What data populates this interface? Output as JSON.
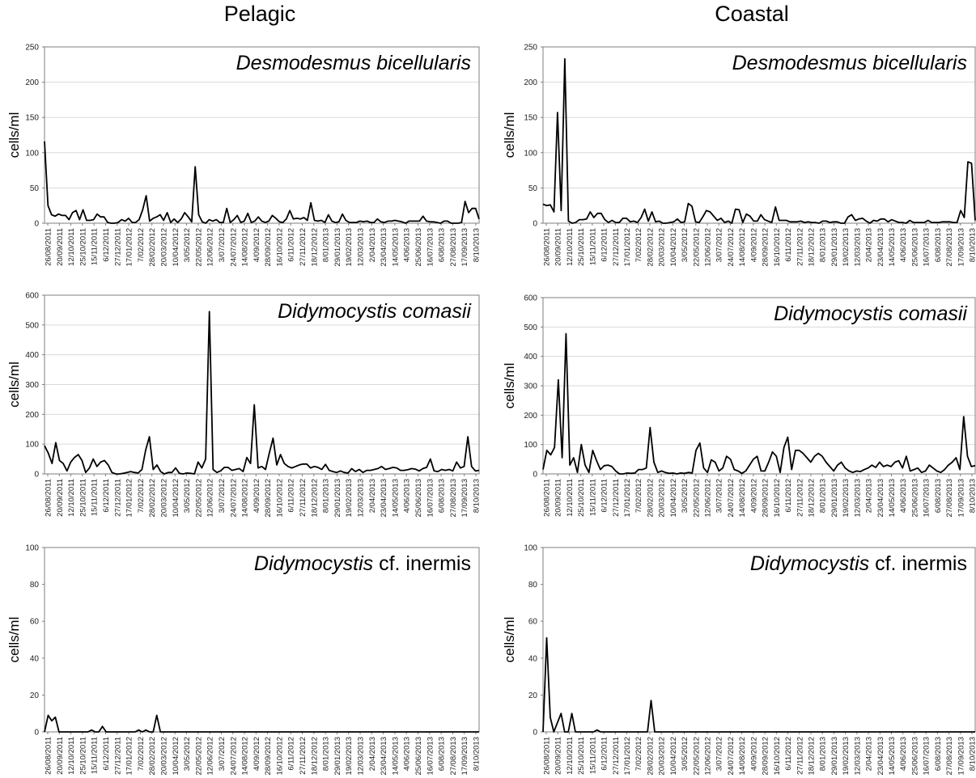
{
  "columns": [
    "Pelagic",
    "Coastal"
  ],
  "chart_data": [
    {
      "type": "line",
      "column": "Pelagic",
      "species": {
        "italic": "Desmodesmus bicellularis",
        "plain": ""
      },
      "ylabel": "cells/ml",
      "ylim": [
        0,
        250
      ],
      "yticks": [
        0,
        50,
        100,
        150,
        200,
        250
      ],
      "grid": true,
      "values": [
        116,
        25,
        12,
        10,
        13,
        11,
        11,
        5,
        15,
        18,
        5,
        19,
        4,
        4,
        5,
        13,
        9,
        9,
        1,
        0,
        0,
        1,
        5,
        3,
        7,
        1,
        1,
        5,
        19,
        39,
        3,
        7,
        9,
        12,
        4,
        15,
        1,
        6,
        1,
        6,
        15,
        9,
        2,
        80,
        12,
        2,
        0,
        5,
        3,
        5,
        1,
        1,
        21,
        1,
        5,
        11,
        1,
        3,
        14,
        1,
        3,
        9,
        3,
        1,
        3,
        11,
        7,
        2,
        1,
        6,
        18,
        6,
        7,
        6,
        8,
        4,
        29,
        4,
        3,
        4,
        1,
        12,
        3,
        1,
        2,
        13,
        4,
        1,
        1,
        1,
        3,
        2,
        3,
        1,
        1,
        6,
        2,
        1,
        3,
        3,
        4,
        3,
        2,
        0,
        3,
        3,
        3,
        3,
        10,
        3,
        2,
        2,
        1,
        0,
        3,
        3,
        0,
        0,
        0,
        1,
        31,
        15,
        21,
        21,
        6
      ]
    },
    {
      "type": "line",
      "column": "Coastal",
      "species": {
        "italic": "Desmodesmus bicellularis",
        "plain": ""
      },
      "ylabel": "cells/ml",
      "ylim": [
        0,
        250
      ],
      "yticks": [
        0,
        50,
        100,
        150,
        200,
        250
      ],
      "grid": true,
      "values": [
        27,
        25,
        26,
        16,
        157,
        18,
        233,
        3,
        0,
        1,
        5,
        5,
        6,
        16,
        8,
        14,
        14,
        5,
        1,
        4,
        1,
        1,
        7,
        7,
        2,
        3,
        1,
        8,
        20,
        3,
        16,
        2,
        3,
        0,
        0,
        1,
        2,
        6,
        1,
        2,
        28,
        24,
        2,
        1,
        9,
        18,
        16,
        10,
        4,
        7,
        1,
        3,
        0,
        20,
        19,
        1,
        13,
        10,
        3,
        3,
        12,
        5,
        3,
        1,
        23,
        4,
        4,
        4,
        2,
        2,
        2,
        3,
        1,
        2,
        1,
        1,
        0,
        3,
        3,
        1,
        2,
        2,
        0,
        0,
        9,
        12,
        4,
        6,
        7,
        3,
        0,
        4,
        3,
        6,
        6,
        2,
        5,
        3,
        1,
        1,
        0,
        4,
        1,
        1,
        1,
        1,
        4,
        1,
        1,
        1,
        2,
        2,
        2,
        1,
        1,
        18,
        8,
        87,
        85,
        4
      ]
    },
    {
      "type": "line",
      "column": "Pelagic",
      "species": {
        "italic": "Didymocystis comasii",
        "plain": ""
      },
      "ylabel": "cells/ml",
      "ylim": [
        0,
        600
      ],
      "yticks": [
        0,
        100,
        200,
        300,
        400,
        500,
        600
      ],
      "grid": true,
      "values": [
        95,
        70,
        35,
        105,
        45,
        35,
        10,
        40,
        55,
        65,
        45,
        5,
        20,
        50,
        25,
        40,
        45,
        30,
        5,
        0,
        0,
        2,
        5,
        8,
        5,
        3,
        15,
        80,
        125,
        15,
        30,
        8,
        0,
        5,
        5,
        20,
        2,
        0,
        3,
        2,
        0,
        40,
        20,
        50,
        545,
        15,
        5,
        10,
        22,
        22,
        12,
        15,
        18,
        8,
        55,
        35,
        232,
        20,
        25,
        15,
        70,
        120,
        30,
        65,
        35,
        25,
        20,
        25,
        30,
        33,
        33,
        20,
        25,
        22,
        15,
        32,
        12,
        8,
        5,
        10,
        5,
        3,
        18,
        8,
        15,
        5,
        12,
        12,
        15,
        18,
        25,
        15,
        18,
        22,
        20,
        12,
        12,
        14,
        18,
        16,
        10,
        18,
        22,
        50,
        10,
        8,
        15,
        12,
        15,
        10,
        40,
        20,
        25,
        125,
        25,
        10,
        12
      ]
    },
    {
      "type": "line",
      "column": "Coastal",
      "species": {
        "italic": "Didymocystis comasii",
        "plain": ""
      },
      "ylabel": "cells/ml",
      "ylim": [
        0,
        600
      ],
      "yticks": [
        0,
        100,
        200,
        300,
        400,
        500,
        600
      ],
      "grid": true,
      "values": [
        15,
        80,
        65,
        90,
        320,
        55,
        477,
        30,
        55,
        5,
        100,
        30,
        5,
        80,
        45,
        15,
        28,
        30,
        25,
        10,
        0,
        0,
        3,
        2,
        3,
        15,
        15,
        20,
        158,
        40,
        5,
        10,
        5,
        2,
        3,
        0,
        3,
        2,
        5,
        3,
        80,
        105,
        20,
        5,
        48,
        40,
        10,
        20,
        60,
        50,
        15,
        10,
        2,
        10,
        30,
        50,
        60,
        10,
        10,
        40,
        75,
        60,
        5,
        90,
        125,
        15,
        80,
        80,
        70,
        55,
        40,
        60,
        70,
        60,
        40,
        25,
        10,
        30,
        40,
        20,
        10,
        5,
        10,
        8,
        15,
        20,
        30,
        22,
        40,
        25,
        30,
        25,
        40,
        45,
        20,
        60,
        10,
        15,
        20,
        5,
        10,
        30,
        20,
        10,
        5,
        15,
        30,
        40,
        55,
        15,
        195,
        60,
        25,
        28
      ]
    },
    {
      "type": "line",
      "column": "Pelagic",
      "species": {
        "italic": "Didymocystis",
        "plain": " cf. inermis"
      },
      "ylabel": "cells/ml",
      "ylim": [
        0,
        100
      ],
      "yticks": [
        0,
        20,
        40,
        60,
        80,
        100
      ],
      "grid": false,
      "values": [
        0,
        9,
        6,
        8,
        0,
        0,
        0,
        0,
        0,
        0,
        0,
        0,
        0,
        1,
        0,
        0,
        3,
        0,
        0,
        0,
        0,
        0,
        0,
        0,
        0,
        0,
        1,
        0,
        1,
        0,
        0,
        9,
        0,
        0,
        0,
        0,
        0,
        0,
        0,
        0,
        0,
        0,
        0,
        0,
        0,
        0,
        0,
        0,
        0,
        0,
        0,
        0,
        0,
        0,
        0,
        0,
        0,
        0,
        0,
        0,
        0,
        0,
        0,
        0,
        0,
        0,
        0,
        0,
        0,
        0,
        0,
        0,
        0,
        0,
        0,
        0,
        0,
        0,
        0,
        0,
        0,
        0,
        0,
        0,
        0,
        0,
        0,
        0,
        0,
        0,
        0,
        0,
        0,
        0,
        0,
        0,
        0,
        0,
        0,
        0,
        0,
        0,
        0,
        0,
        0,
        0,
        0,
        0,
        0,
        0,
        0,
        0,
        0,
        0,
        0,
        0,
        0,
        0,
        0,
        0,
        0
      ]
    },
    {
      "type": "line",
      "column": "Coastal",
      "species": {
        "italic": "Didymocystis",
        "plain": " cf. inermis"
      },
      "ylabel": "cells/ml",
      "ylim": [
        0,
        100
      ],
      "yticks": [
        0,
        20,
        40,
        60,
        80,
        100
      ],
      "grid": false,
      "values": [
        0,
        51,
        8,
        0,
        5,
        10,
        0,
        0,
        10,
        0,
        0,
        0,
        0,
        0,
        0,
        1,
        0,
        0,
        0,
        0,
        0,
        0,
        0,
        0,
        0,
        0,
        0,
        0,
        0,
        0,
        17,
        0,
        0,
        0,
        0,
        0,
        0,
        0,
        0,
        0,
        0,
        0,
        0,
        0,
        0,
        0,
        0,
        0,
        0,
        0,
        0,
        0,
        0,
        0,
        0,
        0,
        0,
        0,
        0,
        0,
        0,
        0,
        0,
        0,
        0,
        0,
        0,
        0,
        0,
        0,
        0,
        0,
        0,
        0,
        0,
        0,
        0,
        0,
        0,
        0,
        0,
        0,
        0,
        0,
        0,
        0,
        0,
        0,
        0,
        0,
        0,
        0,
        0,
        0,
        0,
        0,
        0,
        0,
        0,
        0,
        0,
        0,
        0,
        0,
        0,
        0,
        0,
        0,
        0,
        0,
        0,
        0,
        0,
        0,
        0,
        0,
        0,
        0,
        0,
        0,
        0
      ]
    }
  ],
  "x_ticks": [
    "26/08/2011",
    "20/09/2011",
    "12/10/2011",
    "25/10/2011",
    "15/11/2011",
    "6/12/2011",
    "27/12/2011",
    "17/01/2012",
    "7/02/2012",
    "28/02/2012",
    "20/03/2012",
    "10/04/2012",
    "3/05/2012",
    "22/05/2012",
    "12/06/2012",
    "3/07/2012",
    "24/07/2012",
    "14/08/2012",
    "4/09/2012",
    "28/09/2012",
    "16/10/2012",
    "6/11/2012",
    "27/11/2012",
    "18/12/2012",
    "8/01/2013",
    "29/01/2013",
    "19/02/2013",
    "12/03/2013",
    "2/04/2013",
    "23/04/2013",
    "14/05/2013",
    "4/06/2013",
    "25/06/2013",
    "16/07/2013",
    "6/08/2013",
    "27/08/2013",
    "17/09/2013",
    "8/10/2013"
  ]
}
